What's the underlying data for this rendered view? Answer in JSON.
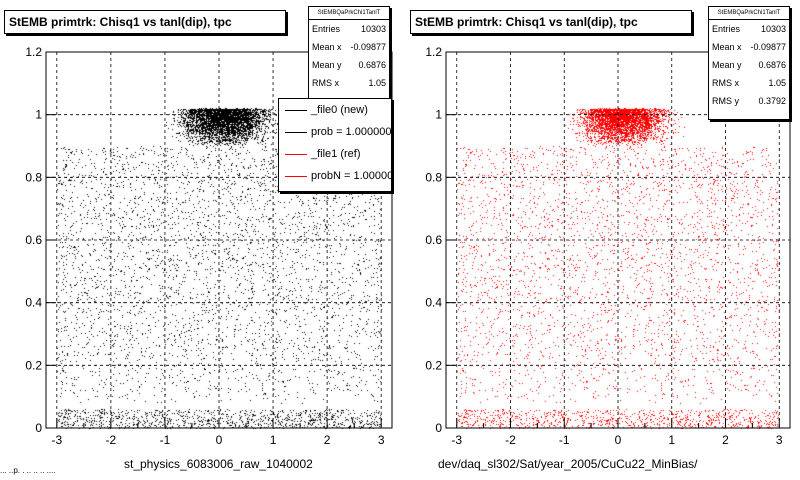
{
  "chart_data": [
    {
      "type": "scatter",
      "title": "StEMB primtrk: Chisq1 vs tanl(dip), tpc",
      "xlabel": "st_physics_6083006_raw_1040002",
      "ylabel": "",
      "xlim": [
        -3.2,
        3.2
      ],
      "ylim": [
        0,
        1.2
      ],
      "x_ticks": [
        -3,
        -2,
        -1,
        0,
        1,
        2,
        3
      ],
      "y_ticks": [
        0,
        0.2,
        0.4,
        0.6,
        0.8,
        1,
        1.2
      ],
      "x_tick_labels": [
        "-3",
        "-2",
        "-1",
        "0",
        "1",
        "2",
        "3"
      ],
      "y_tick_labels": [
        "0",
        "0.2",
        "0.4",
        "0.6",
        "0.8",
        "1",
        "1.2"
      ],
      "grid": true,
      "marker_color": "#000000",
      "stats": {
        "header": "StEMBQaPrkChi1TanlT",
        "rows": [
          {
            "label": "Entries",
            "value": "10303"
          },
          {
            "label": "Mean x",
            "value": "-0.09877"
          },
          {
            "label": "Mean y",
            "value": "0.6876"
          },
          {
            "label": "RMS x",
            "value": "1.05"
          }
        ]
      },
      "legend": {
        "placement": "top-right",
        "entries": [
          {
            "label": "_file0 (new)",
            "color": "#000000"
          },
          {
            "label": "prob = 1.000000",
            "color": "#000000"
          },
          {
            "label": "_file1 (ref)",
            "color": "#ff0000"
          },
          {
            "label": "probN = 1.000000",
            "color": "#ff0000"
          }
        ]
      },
      "density": {
        "entries": 10303,
        "band_y": [
          0.9,
          1.02
        ],
        "band_x": [
          -2.2,
          1.8
        ],
        "mid_y": [
          0.08,
          0.9
        ],
        "mid_x": [
          -3.0,
          3.0
        ],
        "low_y": [
          0.0,
          0.06
        ],
        "low_x": [
          -3.0,
          3.0
        ]
      }
    },
    {
      "type": "scatter",
      "title": "StEMB primtrk: Chisq1 vs tanl(dip), tpc",
      "xlabel": "dev/daq_sl302/Sat/year_2005/CuCu22_MinBias/",
      "ylabel": "",
      "xlim": [
        -3.2,
        3.2
      ],
      "ylim": [
        0,
        1.2
      ],
      "x_ticks": [
        -3,
        -2,
        -1,
        0,
        1,
        2,
        3
      ],
      "y_ticks": [
        0,
        0.2,
        0.4,
        0.6,
        0.8,
        1,
        1.2
      ],
      "x_tick_labels": [
        "-3",
        "-2",
        "-1",
        "0",
        "1",
        "2",
        "3"
      ],
      "y_tick_labels": [
        "0",
        "0.2",
        "0.4",
        "0.6",
        "0.8",
        "1",
        "1.2"
      ],
      "grid": true,
      "marker_color": "#ff0000",
      "stats": {
        "header": "StEMBQaPrkChi1TanlT",
        "rows": [
          {
            "label": "Entries",
            "value": "10303"
          },
          {
            "label": "Mean x",
            "value": "-0.09877"
          },
          {
            "label": "Mean y",
            "value": "0.6876"
          },
          {
            "label": "RMS x",
            "value": "1.05"
          },
          {
            "label": "RMS y",
            "value": "0.3792"
          }
        ]
      },
      "density": {
        "entries": 10303,
        "band_y": [
          0.9,
          1.02
        ],
        "band_x": [
          -2.2,
          1.8
        ],
        "mid_y": [
          0.08,
          0.9
        ],
        "mid_x": [
          -3.0,
          3.0
        ],
        "low_y": [
          0.0,
          0.06
        ],
        "low_x": [
          -3.0,
          3.0
        ]
      }
    }
  ],
  "footer_text": "... ..p. . .. .. .. ...."
}
